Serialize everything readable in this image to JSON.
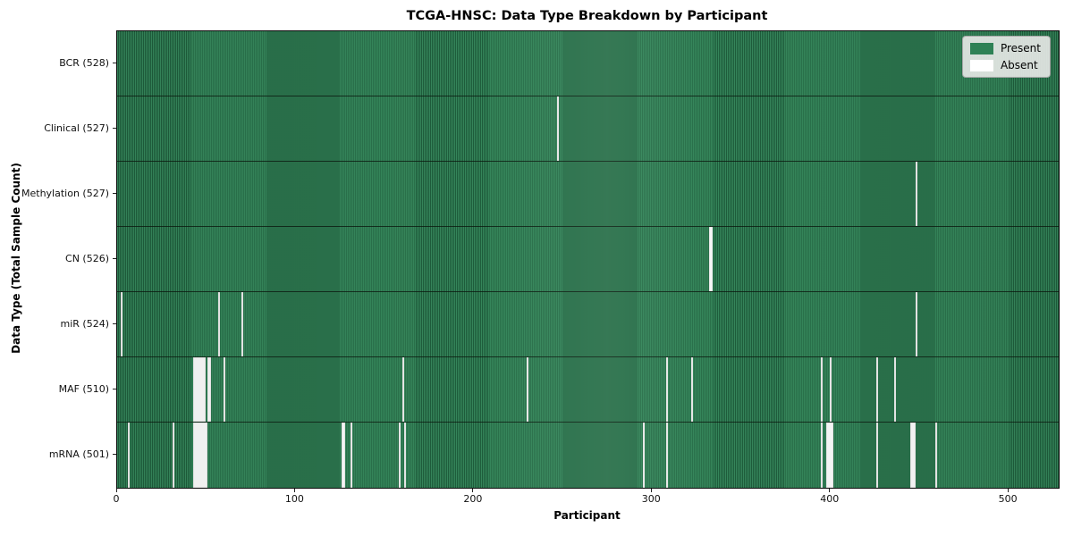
{
  "title": "TCGA-HNSC: Data Type Breakdown by Participant",
  "axes": {
    "x_label": "Participant",
    "y_label": "Data Type (Total Sample Count)",
    "x_ticks": [
      0,
      100,
      200,
      300,
      400,
      500
    ]
  },
  "legend": {
    "items": [
      {
        "label": "Present",
        "color": "#2e8155"
      },
      {
        "label": "Absent",
        "color": "#ffffff"
      }
    ]
  },
  "colors": {
    "present_fill": "#35855a",
    "present_edge": "#1e5c3b",
    "absent_fill": "#f7f7f7",
    "plot_border": "#0a0a0a",
    "legend_bg": "#e5e7e5"
  },
  "chart_data": {
    "type": "heatmap",
    "title": "TCGA-HNSC: Data Type Breakdown by Participant",
    "xlabel": "Participant",
    "ylabel": "Data Type (Total Sample Count)",
    "x_range": [
      0,
      528
    ],
    "n_participants": 528,
    "x_ticks": [
      0,
      100,
      200,
      300,
      400,
      500
    ],
    "legend_entries": [
      "Present",
      "Absent"
    ],
    "cell_states": {
      "present": 1,
      "absent": 0
    },
    "rows": [
      {
        "label": "BCR (528)",
        "data_type": "BCR",
        "total_samples": 528,
        "absent_participants": []
      },
      {
        "label": "Clinical (527)",
        "data_type": "Clinical",
        "total_samples": 527,
        "absent_participants": [
          247
        ]
      },
      {
        "label": "Methylation (527)",
        "data_type": "Methylation",
        "total_samples": 527,
        "absent_participants": [
          448
        ]
      },
      {
        "label": "CN (526)",
        "data_type": "CN",
        "total_samples": 526,
        "absent_participants": [
          332,
          333
        ]
      },
      {
        "label": "miR (524)",
        "data_type": "miR",
        "total_samples": 524,
        "absent_participants": [
          2,
          57,
          70,
          448
        ]
      },
      {
        "label": "MAF (510)",
        "data_type": "MAF",
        "total_samples": 510,
        "absent_participants": [
          43,
          44,
          45,
          46,
          47,
          48,
          49,
          51,
          52,
          60,
          160,
          230,
          308,
          322,
          395,
          400,
          426,
          436
        ]
      },
      {
        "label": "mRNA (501)",
        "data_type": "mRNA",
        "total_samples": 501,
        "absent_participants": [
          6,
          31,
          43,
          44,
          45,
          46,
          47,
          48,
          49,
          50,
          126,
          127,
          131,
          158,
          161,
          295,
          308,
          395,
          398,
          399,
          400,
          401,
          426,
          445,
          446,
          447,
          459
        ]
      }
    ]
  }
}
